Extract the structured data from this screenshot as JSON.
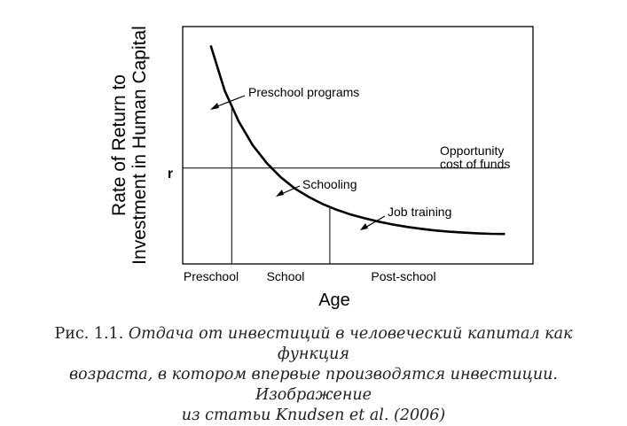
{
  "top_fragment": "",
  "chart_data": {
    "type": "line",
    "title": "",
    "xlabel": "Age",
    "ylabel_line1": "Rate of Return to",
    "ylabel_line2": "Investment in Human Capital",
    "r_label": "r",
    "opportunity_line1": "Opportunity",
    "opportunity_line2": "cost of funds",
    "stages": [
      "Preschool",
      "School",
      "Post-school"
    ],
    "annotations": [
      "Preschool programs",
      "Schooling",
      "Job training"
    ],
    "series": [
      {
        "x": [
          0.08,
          0.12,
          0.16,
          0.2,
          0.24,
          0.28,
          0.32,
          0.36,
          0.4,
          0.44,
          0.48,
          0.52,
          0.56,
          0.6,
          0.64,
          0.68,
          0.72,
          0.76,
          0.8,
          0.84,
          0.88,
          0.92
        ],
        "y": [
          0.92,
          0.73,
          0.6,
          0.5,
          0.425,
          0.365,
          0.318,
          0.282,
          0.252,
          0.228,
          0.208,
          0.192,
          0.178,
          0.166,
          0.156,
          0.148,
          0.141,
          0.136,
          0.132,
          0.129,
          0.127,
          0.126
        ]
      }
    ],
    "opportunity_cost": 0.404,
    "stage_boundaries": [
      0.14,
      0.42
    ],
    "xlim": [
      0,
      1
    ],
    "ylim": [
      0,
      1
    ]
  },
  "caption": {
    "prefix": "Рис. 1.1. ",
    "line1": "Отдача от инвестиций в человеческий капитал как функция",
    "line2": "возраста, в котором впервые производятся инвестиции. Изображение",
    "line3": "из статьи Knudsen et al. (2006)"
  }
}
